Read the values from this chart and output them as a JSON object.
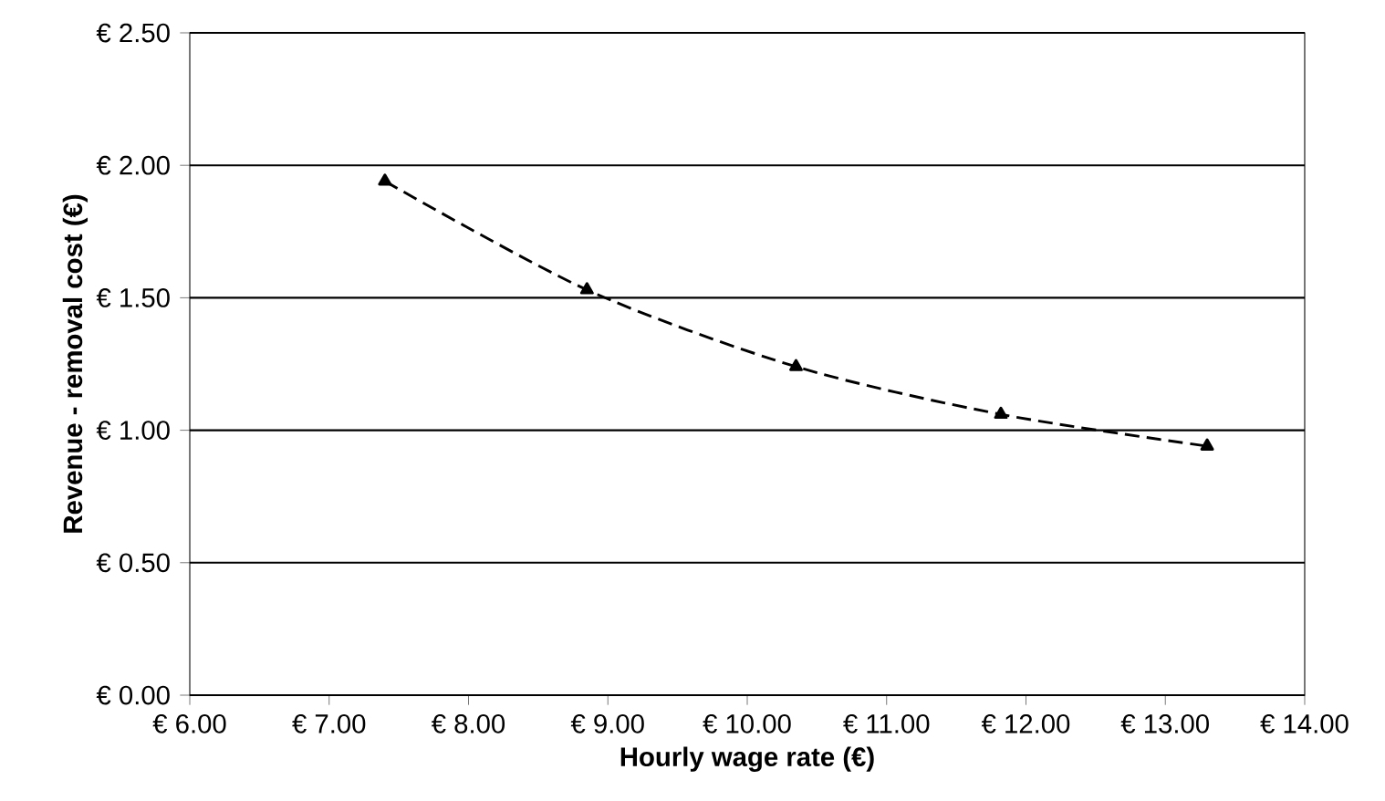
{
  "chart_data": {
    "type": "line",
    "xlabel": "Hourly wage rate (€)",
    "ylabel": "Revenue - removal cost (€)",
    "series": [
      {
        "color": "#000000",
        "x": [
          7.4,
          8.85,
          10.35,
          11.82,
          13.3
        ],
        "values": [
          1.94,
          1.53,
          1.24,
          1.06,
          0.94
        ]
      }
    ],
    "xlim": [
      6,
      14
    ],
    "ylim": [
      0,
      2.5
    ],
    "xticks": [
      {
        "value": 6,
        "label": "€ 6.00"
      },
      {
        "value": 7,
        "label": "€ 7.00"
      },
      {
        "value": 8,
        "label": "€ 8.00"
      },
      {
        "value": 9,
        "label": "€ 9.00"
      },
      {
        "value": 10,
        "label": "€ 10.00"
      },
      {
        "value": 11,
        "label": "€ 11.00"
      },
      {
        "value": 12,
        "label": "€ 12.00"
      },
      {
        "value": 13,
        "label": "€ 13.00"
      },
      {
        "value": 14,
        "label": "€ 14.00"
      }
    ],
    "yticks": [
      {
        "value": 0,
        "label": "€ 0.00"
      },
      {
        "value": 0.5,
        "label": "€ 0.50"
      },
      {
        "value": 1,
        "label": "€ 1.00"
      },
      {
        "value": 1.5,
        "label": "€ 1.50"
      },
      {
        "value": 2,
        "label": "€ 2.00"
      },
      {
        "value": 2.5,
        "label": "€ 2.50"
      }
    ],
    "grid": "y",
    "marker": "triangle",
    "line_style": "dashed"
  }
}
